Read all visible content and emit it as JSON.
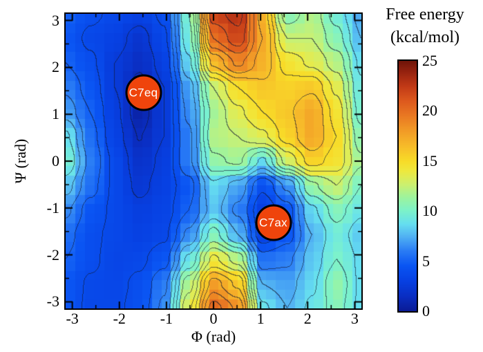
{
  "chart_data": {
    "type": "heatmap",
    "xlabel": "Φ (rad)",
    "ylabel": "Ψ (rad)",
    "x_range": [
      -3.1416,
      3.1416
    ],
    "y_range": [
      -3.1416,
      3.1416
    ],
    "x_major_ticks": [
      -3,
      -2,
      -1,
      0,
      1,
      2,
      3
    ],
    "y_major_ticks": [
      -3,
      -2,
      -1,
      0,
      1,
      2,
      3
    ],
    "minor_tick_step": 0.5,
    "grid_lines": "off",
    "contour_interval": 1.25,
    "colorbar": {
      "title_line1": "Free energy",
      "title_line2": "(kcal/mol)",
      "ticks": [
        0,
        5,
        10,
        15,
        20,
        25
      ],
      "min": 0,
      "max": 25
    },
    "colormap": [
      [
        0,
        "#0A1C96"
      ],
      [
        1.5,
        "#0A2FC4"
      ],
      [
        3,
        "#0741E3"
      ],
      [
        4.5,
        "#0A55F3"
      ],
      [
        6,
        "#2B7DF5"
      ],
      [
        7.5,
        "#53B4F3"
      ],
      [
        8.7,
        "#66DFF0"
      ],
      [
        10,
        "#7CF2CB"
      ],
      [
        11.3,
        "#9CF4A0"
      ],
      [
        12.7,
        "#CEF06E"
      ],
      [
        14,
        "#EFE93F"
      ],
      [
        15,
        "#F8DC28"
      ],
      [
        16.5,
        "#F7BC2A"
      ],
      [
        18,
        "#F29C27"
      ],
      [
        19.5,
        "#EA7A23"
      ],
      [
        21,
        "#DE5A1E"
      ],
      [
        22.5,
        "#C23A17"
      ],
      [
        24,
        "#94220F"
      ],
      [
        25,
        "#701509"
      ]
    ],
    "phi_nodes": [
      -3.14,
      -2.62,
      -2.09,
      -1.57,
      -1.05,
      -0.52,
      0,
      0.52,
      1.05,
      1.57,
      2.09,
      2.62,
      3.14
    ],
    "psi_nodes": [
      3.14,
      2.62,
      2.09,
      1.57,
      1.05,
      0.52,
      0,
      -0.52,
      -1.05,
      -1.57,
      -2.09,
      -2.62,
      -3.14
    ],
    "free_energy_grid": [
      [
        5.0,
        4.0,
        3.5,
        3.0,
        4.0,
        10.0,
        22.0,
        23.0,
        17.0,
        10.5,
        12.0,
        9.5,
        7.0
      ],
      [
        4.5,
        3.5,
        3.0,
        2.0,
        3.5,
        9.5,
        20.0,
        22.0,
        17.5,
        12.5,
        12.5,
        10.5,
        7.5
      ],
      [
        5.0,
        4.0,
        2.5,
        1.5,
        3.0,
        8.5,
        16.5,
        19.0,
        17.0,
        14.5,
        13.5,
        12.0,
        8.5
      ],
      [
        6.0,
        4.5,
        2.5,
        0.8,
        2.5,
        7.0,
        12.5,
        15.0,
        16.0,
        15.5,
        16.0,
        13.5,
        9.0
      ],
      [
        7.0,
        5.0,
        2.8,
        0.6,
        2.5,
        6.5,
        11.5,
        13.5,
        15.0,
        16.0,
        17.5,
        14.5,
        9.5
      ],
      [
        9.0,
        5.5,
        3.0,
        1.2,
        2.5,
        6.0,
        12.0,
        12.5,
        13.5,
        15.5,
        17.5,
        15.0,
        10.5
      ],
      [
        10.0,
        6.0,
        3.5,
        1.8,
        2.8,
        6.0,
        11.0,
        11.5,
        8.5,
        13.0,
        15.5,
        14.5,
        11.5
      ],
      [
        8.0,
        5.5,
        3.5,
        2.2,
        3.0,
        4.5,
        8.5,
        7.0,
        4.0,
        6.5,
        11.0,
        12.5,
        10.0
      ],
      [
        6.5,
        4.5,
        3.5,
        2.8,
        3.2,
        5.0,
        8.0,
        6.0,
        2.8,
        4.5,
        8.5,
        10.5,
        9.0
      ],
      [
        5.5,
        4.0,
        3.5,
        3.0,
        3.5,
        6.5,
        10.5,
        7.5,
        3.0,
        4.5,
        7.5,
        9.5,
        8.0
      ],
      [
        5.0,
        4.0,
        3.3,
        3.5,
        4.5,
        9.0,
        14.0,
        12.0,
        5.5,
        6.0,
        8.0,
        10.0,
        8.5
      ],
      [
        4.5,
        3.6,
        3.4,
        4.0,
        6.0,
        12.0,
        18.0,
        16.0,
        7.5,
        7.0,
        8.5,
        11.0,
        8.5
      ],
      [
        4.5,
        3.5,
        3.5,
        4.2,
        6.5,
        13.5,
        20.5,
        18.5,
        9.0,
        7.5,
        9.0,
        10.5,
        8.5
      ]
    ],
    "annotations": [
      {
        "label": "C7eq",
        "phi": -1.49,
        "psi": 1.46
      },
      {
        "label": "C7ax",
        "phi": 1.27,
        "psi": -1.32
      }
    ],
    "annotation_style": {
      "fill": "#EF440C",
      "border": "#000000",
      "text_color": "#FFFFFF"
    }
  }
}
